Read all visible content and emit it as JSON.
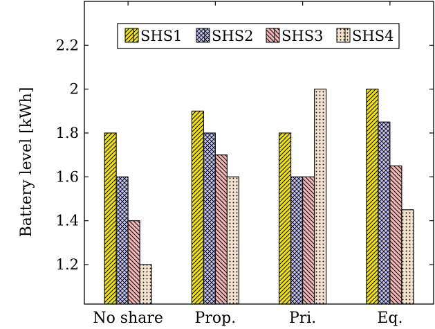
{
  "chart_data": {
    "type": "bar",
    "ylabel": "Battery level [kWh]",
    "xlabel": "",
    "categories": [
      "No share",
      "Prop.",
      "Pri.",
      "Eq."
    ],
    "ylim": [
      1.02,
      2.4
    ],
    "yticks": [
      1.2,
      1.4,
      1.6,
      1.8,
      2,
      2.2
    ],
    "ytick_labels": [
      "1.2",
      "1.4",
      "1.6",
      "1.8",
      "2",
      "2.2"
    ],
    "grid": false,
    "legend_position": "top-right",
    "series": [
      {
        "name": "SHS1",
        "values": [
          1.8,
          1.9,
          1.8,
          2.0
        ],
        "color": "#f5e600",
        "pattern": "north-east-lines"
      },
      {
        "name": "SHS2",
        "values": [
          1.6,
          1.8,
          1.6,
          1.85
        ],
        "color": "#c4c4f2",
        "pattern": "crosshatch"
      },
      {
        "name": "SHS3",
        "values": [
          1.4,
          1.7,
          1.6,
          1.65
        ],
        "color": "#f4b6b6",
        "pattern": "north-west-lines"
      },
      {
        "name": "SHS4",
        "values": [
          1.2,
          1.6,
          2.0,
          1.45
        ],
        "color": "#f3e3cc",
        "pattern": "dots"
      }
    ]
  }
}
